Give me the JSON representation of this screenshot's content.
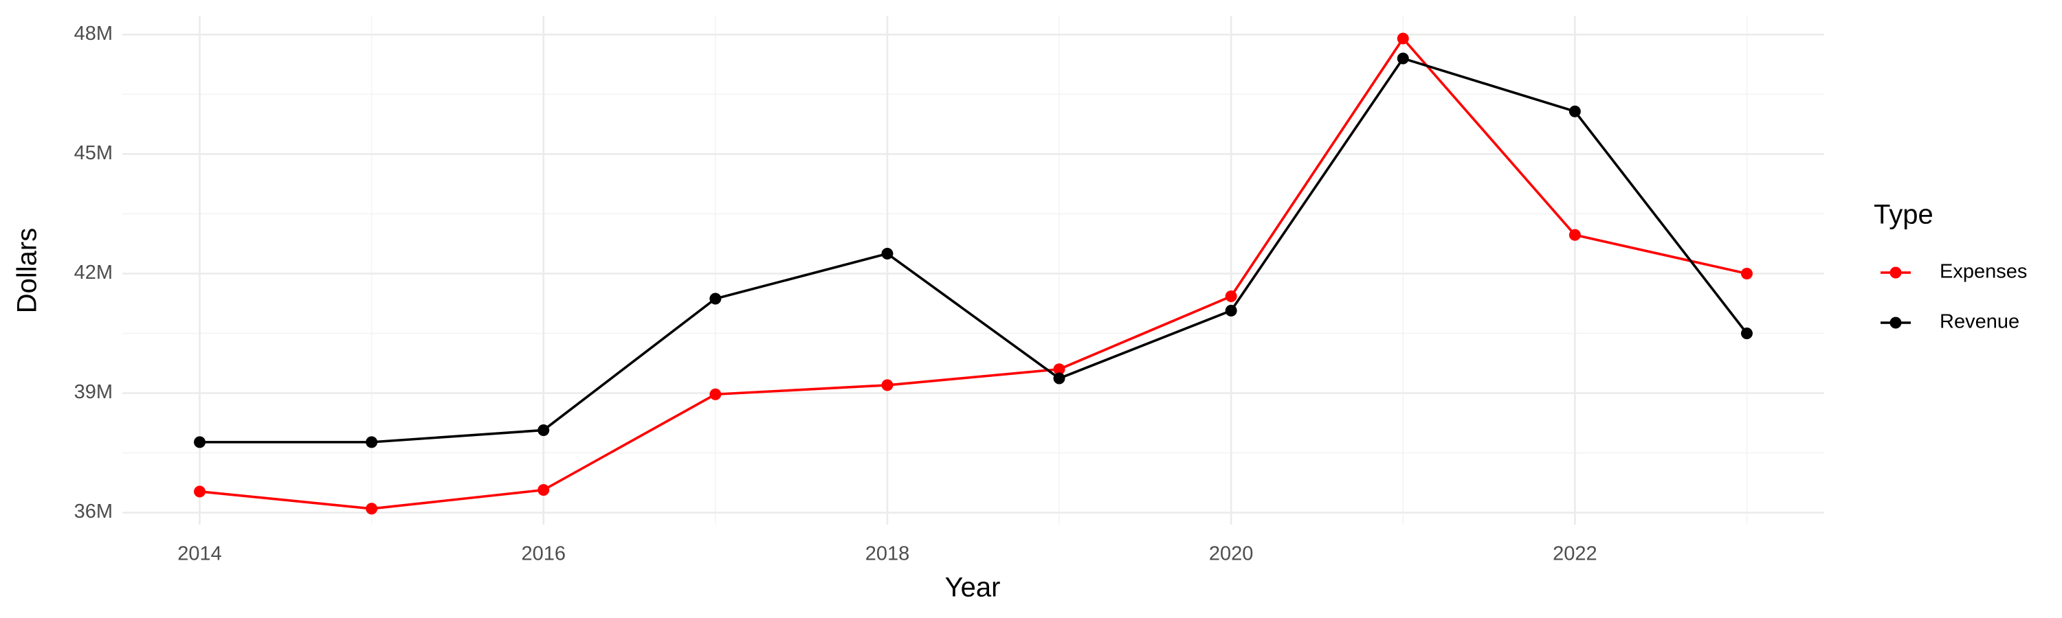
{
  "chart_data": {
    "type": "line",
    "x_label": "Year",
    "y_label": "Dollars",
    "x": [
      2014,
      2015,
      2016,
      2017,
      2018,
      2019,
      2020,
      2021,
      2022,
      2023
    ],
    "series": [
      {
        "name": "Expenses",
        "color": "#ff0000",
        "values": [
          36530000,
          36100000,
          36570000,
          38970000,
          39200000,
          39600000,
          41430000,
          47900000,
          42970000,
          42000000
        ]
      },
      {
        "name": "Revenue",
        "color": "#000000",
        "values": [
          37770000,
          37770000,
          38070000,
          41370000,
          42500000,
          39370000,
          41070000,
          47400000,
          46070000,
          40500000
        ]
      }
    ],
    "xlim": [
      2013.55,
      2023.45
    ],
    "xticks": [
      2014,
      2016,
      2018,
      2020,
      2022
    ],
    "ylim": [
      35700000,
      48470000
    ],
    "yticks": [
      {
        "value": 36000000,
        "label": "36M"
      },
      {
        "value": 39000000,
        "label": "39M"
      },
      {
        "value": 42000000,
        "label": "42M"
      },
      {
        "value": 45000000,
        "label": "45M"
      },
      {
        "value": 48000000,
        "label": "48M"
      }
    ],
    "grid": true,
    "legend_title": "Type",
    "legend_position": "right"
  }
}
